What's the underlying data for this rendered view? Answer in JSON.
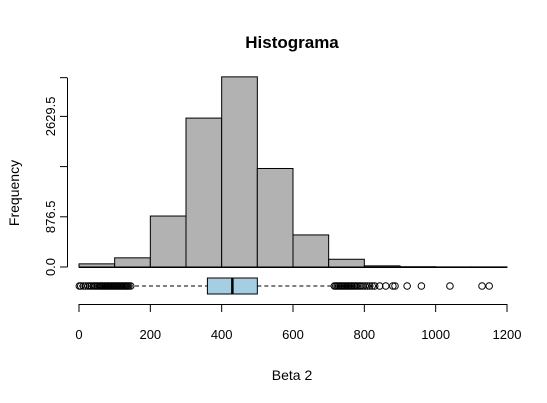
{
  "chart_data": {
    "type": "bar",
    "title": "Histograma",
    "xlabel": "Beta 2",
    "ylabel": "Frequency",
    "x_ticks": [
      0,
      200,
      400,
      600,
      800,
      1000,
      1200
    ],
    "y_ticks": [
      0.0,
      876.5,
      2629.5
    ],
    "y_tick_labels": [
      "0.0",
      "876.5",
      "2629.5"
    ],
    "xlim": [
      0,
      1200
    ],
    "ylim": [
      0,
      3300
    ],
    "bins": [
      {
        "from": 0,
        "to": 100,
        "count": 55
      },
      {
        "from": 100,
        "to": 200,
        "count": 160
      },
      {
        "from": 200,
        "to": 300,
        "count": 890
      },
      {
        "from": 300,
        "to": 400,
        "count": 2600
      },
      {
        "from": 400,
        "to": 500,
        "count": 3320
      },
      {
        "from": 500,
        "to": 600,
        "count": 1720
      },
      {
        "from": 600,
        "to": 700,
        "count": 560
      },
      {
        "from": 700,
        "to": 800,
        "count": 135
      },
      {
        "from": 800,
        "to": 900,
        "count": 20
      },
      {
        "from": 900,
        "to": 1000,
        "count": 5
      },
      {
        "from": 1000,
        "to": 1100,
        "count": 2
      },
      {
        "from": 1100,
        "to": 1200,
        "count": 2
      }
    ],
    "boxplot": {
      "whisker_low": 0,
      "q1": 360,
      "median": 430,
      "q3": 500,
      "whisker_high": 830,
      "box_color": "#a6cee3",
      "outliers": [
        1,
        5,
        12,
        18,
        25,
        30,
        35,
        40,
        44,
        48,
        52,
        56,
        60,
        63,
        66,
        70,
        73,
        76,
        80,
        83,
        86,
        90,
        93,
        96,
        100,
        103,
        106,
        110,
        113,
        116,
        120,
        123,
        126,
        130,
        133,
        136,
        140,
        145,
        716,
        720,
        724,
        728,
        732,
        736,
        740,
        744,
        748,
        752,
        756,
        760,
        764,
        768,
        772,
        776,
        780,
        785,
        790,
        796,
        802,
        808,
        815,
        822,
        829,
        843,
        860,
        880,
        886,
        920,
        960,
        1040,
        1130,
        1150
      ]
    },
    "bar_color": "#b2b2b2"
  }
}
